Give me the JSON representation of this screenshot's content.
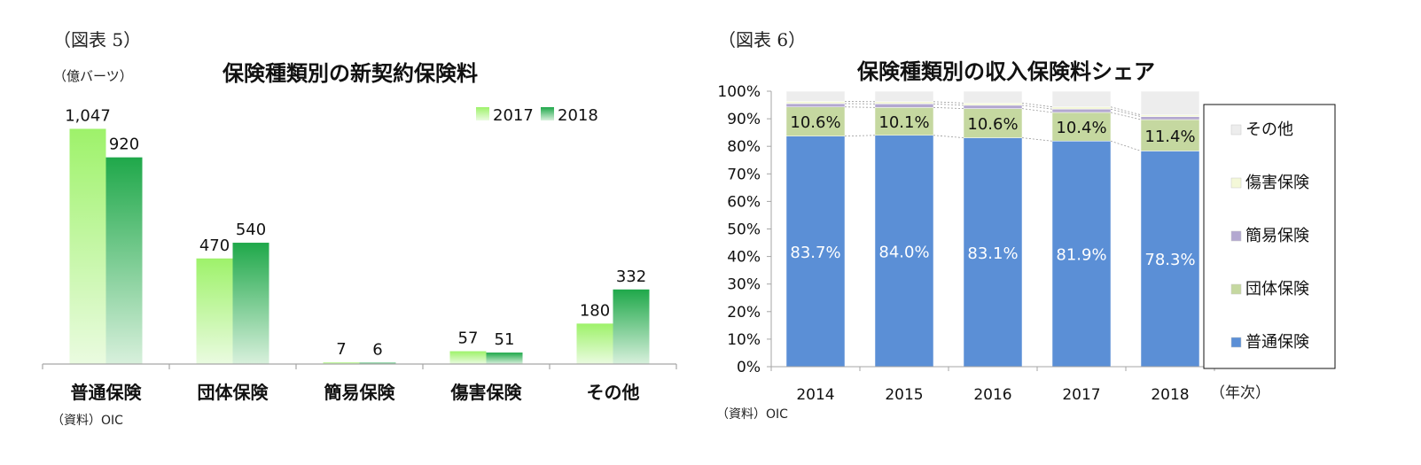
{
  "colors": {
    "green_2017": "#9ef26a",
    "green_2018": "#1fa84a",
    "blue": "#5b8fd6",
    "olive": "#c5d8a0",
    "lavender": "#b3a8d0",
    "cream": "#f4f8d8",
    "lightgray": "#ededed"
  },
  "chart_data": [
    {
      "type": "bar",
      "figure_label": "（図表 5）",
      "title": "保険種類別の新契約保険料",
      "unit_label": "（億バーツ）",
      "categories": [
        "普通保険",
        "団体保険",
        "簡易保険",
        "傷害保険",
        "その他"
      ],
      "series": [
        {
          "name": "2017",
          "values": [
            1047,
            470,
            7,
            57,
            180
          ],
          "labels": [
            "1,047",
            "470",
            "7",
            "57",
            "180"
          ]
        },
        {
          "name": "2018",
          "values": [
            920,
            540,
            6,
            51,
            332
          ],
          "labels": [
            "920",
            "540",
            "6",
            "51",
            "332"
          ]
        }
      ],
      "ylim": [
        0,
        1100
      ],
      "legend_position": "top-right",
      "source": "（資料）OIC"
    },
    {
      "type": "bar",
      "stacked": true,
      "figure_label": "（図表 6）",
      "title": "保険種類別の収入保険料シェア",
      "categories": [
        "2014",
        "2015",
        "2016",
        "2017",
        "2018"
      ],
      "x_unit": "（年次）",
      "y_ticks": [
        "0%",
        "10%",
        "20%",
        "30%",
        "40%",
        "50%",
        "60%",
        "70%",
        "80%",
        "90%",
        "100%"
      ],
      "ylim": [
        0,
        100
      ],
      "series": [
        {
          "name": "普通保険",
          "values": [
            83.7,
            84.0,
            83.1,
            81.9,
            78.3
          ],
          "labels": [
            "83.7%",
            "84.0%",
            "83.1%",
            "81.9%",
            "78.3%"
          ]
        },
        {
          "name": "団体保険",
          "values": [
            10.6,
            10.1,
            10.6,
            10.4,
            11.4
          ],
          "labels": [
            "10.6%",
            "10.1%",
            "10.6%",
            "10.4%",
            "11.4%"
          ]
        },
        {
          "name": "簡易保険",
          "values": [
            1.2,
            1.3,
            1.2,
            1.2,
            1.1
          ]
        },
        {
          "name": "傷害保険",
          "values": [
            0.8,
            0.8,
            0.8,
            0.8,
            0.6
          ]
        },
        {
          "name": "その他",
          "values": [
            3.7,
            3.8,
            4.3,
            5.7,
            8.6
          ]
        }
      ],
      "legend": [
        "その他",
        "傷害保険",
        "簡易保険",
        "団体保険",
        "普通保険"
      ],
      "legend_position": "right",
      "source": "（資料）OIC"
    }
  ]
}
